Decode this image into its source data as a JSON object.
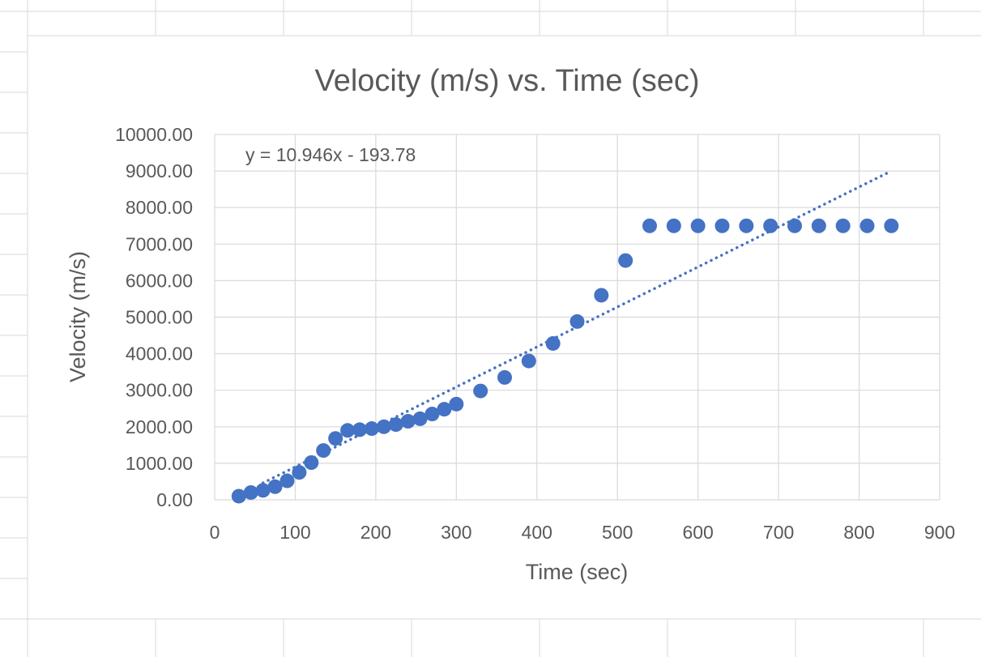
{
  "chart_data": {
    "type": "scatter",
    "title": "Velocity (m/s) vs. Time (sec)",
    "xlabel": "Time (sec)",
    "ylabel": "Velocity (m/s)",
    "xlim": [
      0,
      900
    ],
    "ylim": [
      0,
      10000
    ],
    "x_ticks": [
      "0",
      "100",
      "200",
      "300",
      "400",
      "500",
      "600",
      "700",
      "800",
      "900"
    ],
    "y_ticks": [
      "0.00",
      "1000.00",
      "2000.00",
      "3000.00",
      "4000.00",
      "5000.00",
      "6000.00",
      "7000.00",
      "8000.00",
      "9000.00",
      "10000.00"
    ],
    "grid": true,
    "series": [
      {
        "name": "Velocity",
        "color": "#4472C4",
        "x": [
          30,
          45,
          60,
          75,
          90,
          105,
          120,
          135,
          150,
          165,
          180,
          195,
          210,
          225,
          240,
          255,
          270,
          285,
          300,
          330,
          360,
          390,
          420,
          450,
          480,
          510,
          540,
          570,
          600,
          630,
          660,
          690,
          720,
          750,
          780,
          810,
          840
        ],
        "y": [
          100,
          200,
          260,
          360,
          520,
          750,
          1020,
          1350,
          1680,
          1900,
          1920,
          1950,
          2000,
          2060,
          2150,
          2220,
          2350,
          2480,
          2620,
          2980,
          3350,
          3800,
          4280,
          4880,
          5600,
          6550,
          7500,
          7500,
          7500,
          7500,
          7500,
          7500,
          7500,
          7500,
          7500,
          7500,
          7500
        ]
      }
    ],
    "trendline": {
      "type": "linear",
      "slope": 10.946,
      "intercept": -193.78,
      "x_range": [
        60,
        835
      ],
      "label": "y = 10.946x - 193.78",
      "color": "#4472C4"
    }
  }
}
